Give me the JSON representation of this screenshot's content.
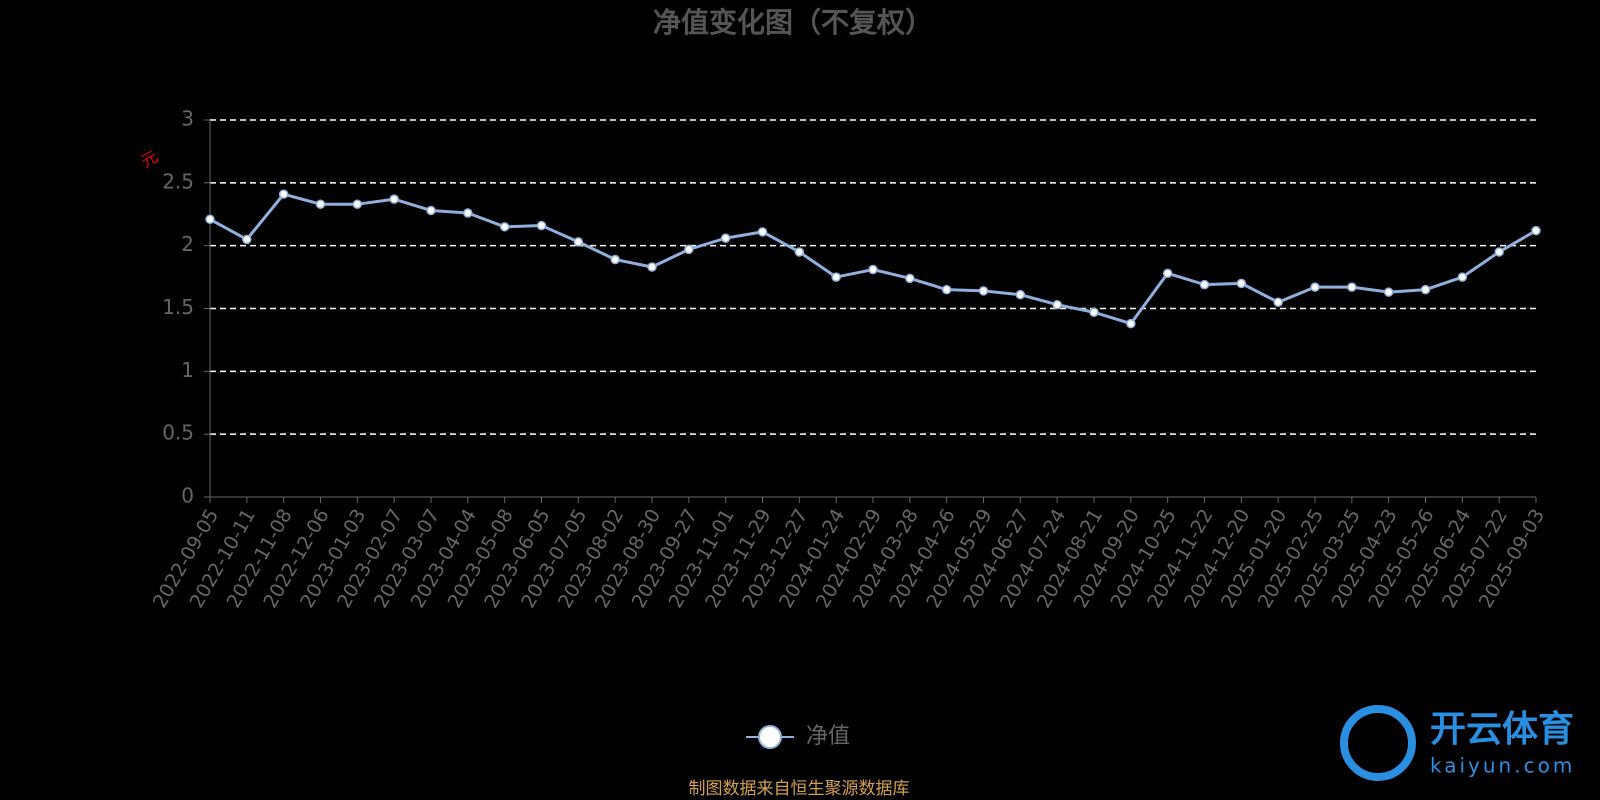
{
  "chart_data": {
    "type": "line",
    "title": "净值变化图（不复权）",
    "y_label": "元",
    "x": [
      "2022-09-05",
      "2022-10-11",
      "2022-11-08",
      "2022-12-06",
      "2023-01-03",
      "2023-02-07",
      "2023-03-07",
      "2023-04-04",
      "2023-05-08",
      "2023-06-05",
      "2023-07-05",
      "2023-08-02",
      "2023-08-30",
      "2023-09-27",
      "2023-11-01",
      "2023-11-29",
      "2023-12-27",
      "2024-01-24",
      "2024-02-29",
      "2024-03-28",
      "2024-04-26",
      "2024-05-29",
      "2024-06-27",
      "2024-07-24",
      "2024-08-21",
      "2024-09-20",
      "2024-10-25",
      "2024-11-22",
      "2024-12-20",
      "2025-01-20",
      "2025-02-25",
      "2025-03-25",
      "2025-04-23",
      "2025-05-26",
      "2025-06-24",
      "2025-07-22",
      "2025-09-03"
    ],
    "series": [
      {
        "name": "净值",
        "color": "#8fb0dd",
        "values": [
          2.21,
          2.05,
          2.41,
          2.33,
          2.33,
          2.37,
          2.28,
          2.26,
          2.15,
          2.16,
          2.03,
          1.89,
          1.83,
          1.97,
          2.06,
          2.11,
          1.95,
          1.75,
          1.81,
          1.74,
          1.65,
          1.64,
          1.61,
          1.53,
          1.47,
          1.38,
          1.78,
          1.69,
          1.7,
          1.55,
          1.67,
          1.67,
          1.63,
          1.65,
          1.75,
          1.95,
          2.12
        ]
      }
    ],
    "ylim": [
      0,
      3
    ],
    "yticks": [
      0,
      0.5,
      1,
      1.5,
      2,
      2.5,
      3
    ],
    "grid": true,
    "legend": "bottom",
    "source": "制图数据来自恒生聚源数据库"
  },
  "watermark": {
    "brand": "开云体育",
    "site": "kaiyun.com"
  }
}
